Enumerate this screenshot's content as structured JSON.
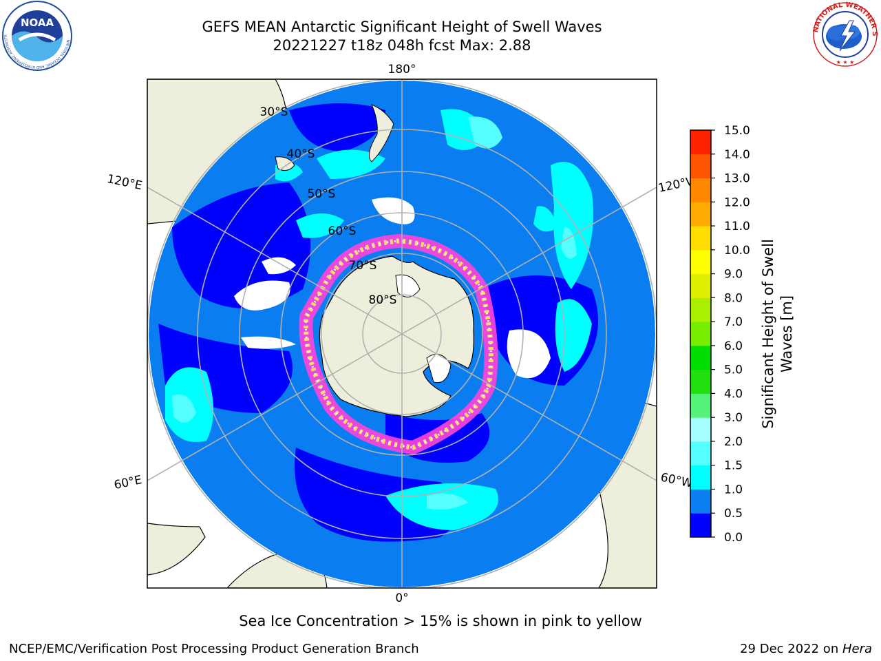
{
  "header": {
    "title_line1": "GEFS MEAN Antarctic Significant Height of Swell Waves",
    "title_line2": "20221227 t18z 048h fcst   Max: 2.88"
  },
  "logos": {
    "left": {
      "name": "noaa-logo",
      "text": "NOAA",
      "ring_text": "NATIONAL OCEANIC AND ATMOSPHERIC ADMINISTRATION · U.S. DEPARTMENT OF COMMERCE"
    },
    "right": {
      "name": "nws-logo",
      "ring_text": "NATIONAL WEATHER SERVICE"
    }
  },
  "map": {
    "projection": "south-polar-stereographic",
    "longitude_labels": {
      "top": "180°",
      "upper_left": "120°E",
      "upper_right": "120°W",
      "lower_left": "60°E",
      "lower_right": "60°W",
      "bottom": "0°"
    },
    "latitude_labels": [
      "30°S",
      "40°S",
      "50°S",
      "60°S",
      "70°S",
      "80°S"
    ],
    "colors": {
      "land": "#eeeedc",
      "ocean_0_0_5": "#0000ff",
      "ocean_0_5_1": "#0a7ef0",
      "ocean_1_1_5": "#00ffff",
      "ocean_1_5_2": "#55ffff",
      "ice_edge_pink": "#ff44dd",
      "ice_edge_yellow": "#ffdd66",
      "gridline": "#b0b0b0"
    }
  },
  "colorbar": {
    "label_line1": "Significant Height of Swell",
    "label_line2": "Waves [m]",
    "ticks": [
      "0.0",
      "0.5",
      "1.0",
      "1.5",
      "2.0",
      "3.0",
      "4.0",
      "5.0",
      "6.0",
      "7.0",
      "8.0",
      "9.0",
      "10.0",
      "11.0",
      "12.0",
      "13.0",
      "14.0",
      "15.0"
    ],
    "colors": [
      "#0000ff",
      "#0a7ef0",
      "#00ffff",
      "#55ffff",
      "#a6ffff",
      "#55f27a",
      "#22e010",
      "#00dd00",
      "#77ee00",
      "#aaee00",
      "#ddee00",
      "#ffff00",
      "#ffdd00",
      "#ffaa00",
      "#ff8800",
      "#ff5500",
      "#ff2200",
      "#ff0000"
    ]
  },
  "footer": {
    "note": "Sea Ice Concentration > 15% is shown in pink to yellow",
    "left": "NCEP/EMC/Verification Post Processing Product Generation Branch",
    "right_prefix": "29 Dec 2022 on ",
    "right_host": "Hera"
  }
}
